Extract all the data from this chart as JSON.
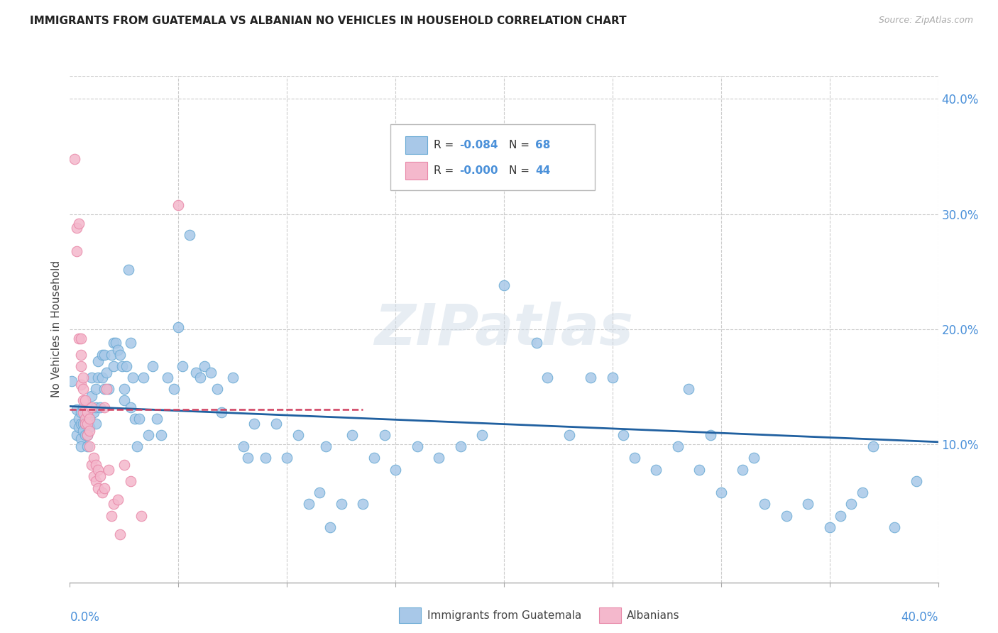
{
  "title": "IMMIGRANTS FROM GUATEMALA VS ALBANIAN NO VEHICLES IN HOUSEHOLD CORRELATION CHART",
  "source": "Source: ZipAtlas.com",
  "ylabel": "No Vehicles in Household",
  "legend_label1": "Immigrants from Guatemala",
  "legend_label2": "Albanians",
  "blue_color": "#a8c8e8",
  "blue_edge_color": "#6aaad4",
  "pink_color": "#f4b8cc",
  "pink_edge_color": "#e888a8",
  "blue_line_color": "#2060a0",
  "pink_line_color": "#d04060",
  "watermark": "ZIPatlas",
  "xlim": [
    0.0,
    0.4
  ],
  "ylim": [
    -0.02,
    0.42
  ],
  "ytick_values": [
    0.1,
    0.2,
    0.3,
    0.4
  ],
  "ytick_labels": [
    "10.0%",
    "20.0%",
    "30.0%",
    "40.0%"
  ],
  "blue_line_x": [
    0.0,
    0.4
  ],
  "blue_line_y": [
    0.133,
    0.102
  ],
  "pink_line_x": [
    0.0,
    0.135
  ],
  "pink_line_y": [
    0.13,
    0.13
  ],
  "pink_line_dash": true,
  "blue_points": [
    [
      0.001,
      0.155
    ],
    [
      0.002,
      0.118
    ],
    [
      0.003,
      0.108
    ],
    [
      0.003,
      0.13
    ],
    [
      0.004,
      0.122
    ],
    [
      0.004,
      0.115
    ],
    [
      0.005,
      0.128
    ],
    [
      0.005,
      0.118
    ],
    [
      0.005,
      0.105
    ],
    [
      0.005,
      0.098
    ],
    [
      0.006,
      0.132
    ],
    [
      0.006,
      0.118
    ],
    [
      0.006,
      0.112
    ],
    [
      0.007,
      0.128
    ],
    [
      0.007,
      0.118
    ],
    [
      0.007,
      0.108
    ],
    [
      0.008,
      0.122
    ],
    [
      0.008,
      0.108
    ],
    [
      0.008,
      0.098
    ],
    [
      0.009,
      0.132
    ],
    [
      0.009,
      0.122
    ],
    [
      0.009,
      0.115
    ],
    [
      0.01,
      0.158
    ],
    [
      0.01,
      0.142
    ],
    [
      0.011,
      0.128
    ],
    [
      0.012,
      0.148
    ],
    [
      0.012,
      0.132
    ],
    [
      0.012,
      0.118
    ],
    [
      0.013,
      0.172
    ],
    [
      0.013,
      0.158
    ],
    [
      0.014,
      0.132
    ],
    [
      0.015,
      0.178
    ],
    [
      0.015,
      0.158
    ],
    [
      0.016,
      0.178
    ],
    [
      0.016,
      0.148
    ],
    [
      0.017,
      0.162
    ],
    [
      0.018,
      0.148
    ],
    [
      0.019,
      0.178
    ],
    [
      0.02,
      0.188
    ],
    [
      0.02,
      0.168
    ],
    [
      0.021,
      0.188
    ],
    [
      0.022,
      0.182
    ],
    [
      0.023,
      0.178
    ],
    [
      0.024,
      0.168
    ],
    [
      0.025,
      0.148
    ],
    [
      0.025,
      0.138
    ],
    [
      0.026,
      0.168
    ],
    [
      0.027,
      0.252
    ],
    [
      0.028,
      0.188
    ],
    [
      0.028,
      0.132
    ],
    [
      0.029,
      0.158
    ],
    [
      0.03,
      0.122
    ],
    [
      0.031,
      0.098
    ],
    [
      0.032,
      0.122
    ],
    [
      0.034,
      0.158
    ],
    [
      0.036,
      0.108
    ],
    [
      0.038,
      0.168
    ],
    [
      0.04,
      0.122
    ],
    [
      0.042,
      0.108
    ],
    [
      0.045,
      0.158
    ],
    [
      0.048,
      0.148
    ],
    [
      0.05,
      0.202
    ],
    [
      0.052,
      0.168
    ],
    [
      0.055,
      0.282
    ],
    [
      0.058,
      0.162
    ],
    [
      0.06,
      0.158
    ],
    [
      0.062,
      0.168
    ],
    [
      0.065,
      0.162
    ],
    [
      0.068,
      0.148
    ],
    [
      0.07,
      0.128
    ],
    [
      0.075,
      0.158
    ],
    [
      0.08,
      0.098
    ],
    [
      0.082,
      0.088
    ],
    [
      0.085,
      0.118
    ],
    [
      0.09,
      0.088
    ],
    [
      0.095,
      0.118
    ],
    [
      0.1,
      0.088
    ],
    [
      0.105,
      0.108
    ],
    [
      0.11,
      0.048
    ],
    [
      0.115,
      0.058
    ],
    [
      0.118,
      0.098
    ],
    [
      0.12,
      0.028
    ],
    [
      0.125,
      0.048
    ],
    [
      0.13,
      0.108
    ],
    [
      0.135,
      0.048
    ],
    [
      0.14,
      0.088
    ],
    [
      0.145,
      0.108
    ],
    [
      0.15,
      0.078
    ],
    [
      0.16,
      0.098
    ],
    [
      0.17,
      0.088
    ],
    [
      0.18,
      0.098
    ],
    [
      0.19,
      0.108
    ],
    [
      0.2,
      0.238
    ],
    [
      0.215,
      0.188
    ],
    [
      0.22,
      0.158
    ],
    [
      0.23,
      0.108
    ],
    [
      0.24,
      0.158
    ],
    [
      0.25,
      0.158
    ],
    [
      0.255,
      0.108
    ],
    [
      0.26,
      0.088
    ],
    [
      0.27,
      0.078
    ],
    [
      0.28,
      0.098
    ],
    [
      0.285,
      0.148
    ],
    [
      0.29,
      0.078
    ],
    [
      0.295,
      0.108
    ],
    [
      0.3,
      0.058
    ],
    [
      0.31,
      0.078
    ],
    [
      0.315,
      0.088
    ],
    [
      0.32,
      0.048
    ],
    [
      0.33,
      0.038
    ],
    [
      0.34,
      0.048
    ],
    [
      0.35,
      0.028
    ],
    [
      0.355,
      0.038
    ],
    [
      0.36,
      0.048
    ],
    [
      0.365,
      0.058
    ],
    [
      0.37,
      0.098
    ],
    [
      0.38,
      0.028
    ],
    [
      0.39,
      0.068
    ]
  ],
  "pink_points": [
    [
      0.002,
      0.348
    ],
    [
      0.003,
      0.288
    ],
    [
      0.003,
      0.268
    ],
    [
      0.004,
      0.292
    ],
    [
      0.004,
      0.192
    ],
    [
      0.005,
      0.192
    ],
    [
      0.005,
      0.178
    ],
    [
      0.005,
      0.168
    ],
    [
      0.005,
      0.152
    ],
    [
      0.006,
      0.158
    ],
    [
      0.006,
      0.148
    ],
    [
      0.006,
      0.138
    ],
    [
      0.006,
      0.128
    ],
    [
      0.007,
      0.138
    ],
    [
      0.007,
      0.122
    ],
    [
      0.007,
      0.118
    ],
    [
      0.008,
      0.128
    ],
    [
      0.008,
      0.118
    ],
    [
      0.008,
      0.108
    ],
    [
      0.009,
      0.122
    ],
    [
      0.009,
      0.112
    ],
    [
      0.009,
      0.098
    ],
    [
      0.01,
      0.132
    ],
    [
      0.01,
      0.082
    ],
    [
      0.011,
      0.088
    ],
    [
      0.011,
      0.072
    ],
    [
      0.012,
      0.082
    ],
    [
      0.012,
      0.068
    ],
    [
      0.013,
      0.078
    ],
    [
      0.013,
      0.062
    ],
    [
      0.014,
      0.072
    ],
    [
      0.015,
      0.058
    ],
    [
      0.016,
      0.132
    ],
    [
      0.016,
      0.062
    ],
    [
      0.017,
      0.148
    ],
    [
      0.018,
      0.078
    ],
    [
      0.019,
      0.038
    ],
    [
      0.02,
      0.048
    ],
    [
      0.022,
      0.052
    ],
    [
      0.023,
      0.022
    ],
    [
      0.025,
      0.082
    ],
    [
      0.028,
      0.068
    ],
    [
      0.033,
      0.038
    ],
    [
      0.05,
      0.308
    ]
  ]
}
